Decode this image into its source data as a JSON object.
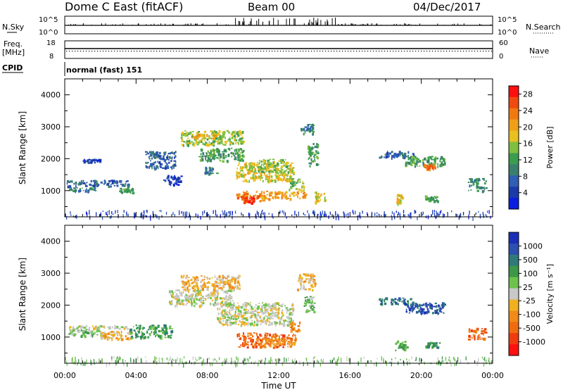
{
  "header": {
    "station": "Dome C East (fitACF)",
    "beam": "Beam 00",
    "date": "04/Dec/2017"
  },
  "strips": {
    "nsky_label": "N.Sky",
    "nsky_top": "10^5",
    "nsky_bottom": "10^0",
    "nsearch_label": "N.Search",
    "nsearch_top": "10^5",
    "nsearch_bottom": "10^0",
    "freq_label_1": "Freq.",
    "freq_label_2": "[MHz]",
    "freq_top": "18",
    "freq_bottom": "8",
    "nave_label": "Nave",
    "nave_top": "60",
    "nave_bottom": "0",
    "cpid_label": "CPID",
    "cpid_value": "normal (fast) 151"
  },
  "colors": {
    "power_scale": [
      "#0a1ee0",
      "#1c3aa8",
      "#2f5eb4",
      "#3a7f6e",
      "#3c9c50",
      "#7fbf3f",
      "#e8c020",
      "#f0a018",
      "#f07a10",
      "#f04a10",
      "#ff1010"
    ],
    "velocity_scale": [
      "#1a2fb8",
      "#2c4fb0",
      "#2f7a78",
      "#3c9848",
      "#6cc24a",
      "#c8c8c8",
      "#f0b020",
      "#f08a18",
      "#f06a10",
      "#f03a10",
      "#ff1010"
    ]
  },
  "chart_data": [
    {
      "type": "heatmap",
      "title": "Power",
      "xlabel": "Time UT",
      "ylabel": "Slant Range [km]",
      "xlim": [
        0,
        24
      ],
      "ylim": [
        180,
        4500
      ],
      "x_ticks": [
        "00:00",
        "04:00",
        "08:00",
        "12:00",
        "16:00",
        "20:00",
        "00:00"
      ],
      "y_ticks": [
        1000,
        2000,
        3000,
        4000
      ],
      "colorbar": {
        "label": "Power [dB]",
        "ticks": [
          4,
          8,
          12,
          16,
          20,
          24,
          28
        ],
        "range": [
          0,
          30
        ]
      },
      "regions": [
        {
          "t0": 0.1,
          "t1": 3.6,
          "r0": 1150,
          "r1": 1350,
          "c": 2
        },
        {
          "t0": 0.2,
          "t1": 1.8,
          "r0": 1000,
          "r1": 1120,
          "c": 3
        },
        {
          "t0": 3.0,
          "t1": 3.8,
          "r0": 960,
          "r1": 1100,
          "c": 4
        },
        {
          "t0": 1.0,
          "t1": 2.0,
          "r0": 1900,
          "r1": 2000,
          "c": 1
        },
        {
          "t0": 4.5,
          "t1": 6.2,
          "r0": 1700,
          "r1": 2250,
          "c": 2
        },
        {
          "t0": 5.5,
          "t1": 6.5,
          "r0": 1200,
          "r1": 1500,
          "c": 1
        },
        {
          "t0": 6.5,
          "t1": 10.0,
          "r0": 2450,
          "r1": 2900,
          "c": 5
        },
        {
          "t0": 7.0,
          "t1": 8.6,
          "r0": 2650,
          "r1": 2800,
          "c": 7
        },
        {
          "t0": 7.5,
          "t1": 10.0,
          "r0": 1950,
          "r1": 2350,
          "c": 4
        },
        {
          "t0": 7.8,
          "t1": 8.5,
          "r0": 1550,
          "r1": 1750,
          "c": 3
        },
        {
          "t0": 9.6,
          "t1": 12.8,
          "r0": 1300,
          "r1": 1900,
          "c": 6
        },
        {
          "t0": 10.8,
          "t1": 12.5,
          "r0": 1600,
          "r1": 2000,
          "c": 5
        },
        {
          "t0": 9.6,
          "t1": 11.2,
          "r0": 700,
          "r1": 1000,
          "c": 8
        },
        {
          "t0": 10.0,
          "t1": 10.6,
          "r0": 640,
          "r1": 820,
          "c": 10
        },
        {
          "t0": 11.0,
          "t1": 13.5,
          "r0": 760,
          "r1": 1000,
          "c": 7
        },
        {
          "t0": 12.5,
          "t1": 13.4,
          "r0": 1050,
          "r1": 1400,
          "c": 5
        },
        {
          "t0": 13.6,
          "t1": 14.2,
          "r0": 1800,
          "r1": 2500,
          "c": 4
        },
        {
          "t0": 13.2,
          "t1": 14.0,
          "r0": 2800,
          "r1": 3100,
          "c": 3
        },
        {
          "t0": 14.0,
          "t1": 14.6,
          "r0": 650,
          "r1": 1000,
          "c": 6
        },
        {
          "t0": 17.6,
          "t1": 19.6,
          "r0": 2050,
          "r1": 2250,
          "c": 2
        },
        {
          "t0": 19.0,
          "t1": 21.3,
          "r0": 1780,
          "r1": 2100,
          "c": 4
        },
        {
          "t0": 20.1,
          "t1": 20.8,
          "r0": 1700,
          "r1": 1850,
          "c": 8
        },
        {
          "t0": 18.6,
          "t1": 18.9,
          "r0": 600,
          "r1": 900,
          "c": 6
        },
        {
          "t0": 20.2,
          "t1": 20.9,
          "r0": 700,
          "r1": 860,
          "c": 4
        },
        {
          "t0": 22.6,
          "t1": 23.6,
          "r0": 1000,
          "r1": 1400,
          "c": 3
        },
        {
          "t0": 0.0,
          "t1": 24.0,
          "r0": 190,
          "r1": 400,
          "c": 1
        }
      ]
    },
    {
      "type": "heatmap",
      "title": "Velocity",
      "xlabel": "Time UT",
      "ylabel": "Slant Range [km]",
      "xlim": [
        0,
        24
      ],
      "ylim": [
        180,
        4500
      ],
      "x_ticks": [
        "00:00",
        "04:00",
        "08:00",
        "12:00",
        "16:00",
        "20:00",
        "00:00"
      ],
      "y_ticks": [
        1000,
        2000,
        3000,
        4000
      ],
      "colorbar": {
        "label": "Velocity [m s⁻¹]",
        "ticks": [
          "1000",
          "500",
          "100",
          "25",
          "-25",
          "-100",
          "-500",
          "-1000"
        ]
      },
      "regions": [
        {
          "t0": 0.1,
          "t1": 3.6,
          "r0": 1250,
          "r1": 1380,
          "c": 5
        },
        {
          "t0": 0.2,
          "t1": 2.2,
          "r0": 1050,
          "r1": 1250,
          "c": 4
        },
        {
          "t0": 2.0,
          "t1": 3.8,
          "r0": 960,
          "r1": 1200,
          "c": 6
        },
        {
          "t0": 3.6,
          "t1": 6.0,
          "r0": 1000,
          "r1": 1400,
          "c": 3
        },
        {
          "t0": 5.8,
          "t1": 9.5,
          "r0": 2000,
          "r1": 2500,
          "c": 5
        },
        {
          "t0": 6.5,
          "t1": 9.8,
          "r0": 2500,
          "r1": 2950,
          "c": 6
        },
        {
          "t0": 8.5,
          "t1": 12.8,
          "r0": 1400,
          "r1": 2100,
          "c": 5
        },
        {
          "t0": 9.6,
          "t1": 12.9,
          "r0": 700,
          "r1": 1150,
          "c": 8
        },
        {
          "t0": 11.0,
          "t1": 13.0,
          "r0": 800,
          "r1": 1000,
          "c": 7
        },
        {
          "t0": 12.6,
          "t1": 13.2,
          "r0": 1200,
          "r1": 1500,
          "c": 7
        },
        {
          "t0": 13.0,
          "t1": 14.0,
          "r0": 2500,
          "r1": 3000,
          "c": 6
        },
        {
          "t0": 13.4,
          "t1": 14.0,
          "r0": 1800,
          "r1": 2300,
          "c": 4
        },
        {
          "t0": 17.6,
          "t1": 19.5,
          "r0": 2050,
          "r1": 2250,
          "c": 2
        },
        {
          "t0": 19.0,
          "t1": 21.3,
          "r0": 1750,
          "r1": 2100,
          "c": 1
        },
        {
          "t0": 18.5,
          "t1": 19.2,
          "r0": 600,
          "r1": 900,
          "c": 3
        },
        {
          "t0": 20.2,
          "t1": 21.0,
          "r0": 700,
          "r1": 860,
          "c": 3
        },
        {
          "t0": 22.6,
          "t1": 23.6,
          "r0": 950,
          "r1": 1300,
          "c": 8
        },
        {
          "t0": 0.0,
          "t1": 24.0,
          "r0": 190,
          "r1": 400,
          "c": 4
        }
      ]
    }
  ]
}
